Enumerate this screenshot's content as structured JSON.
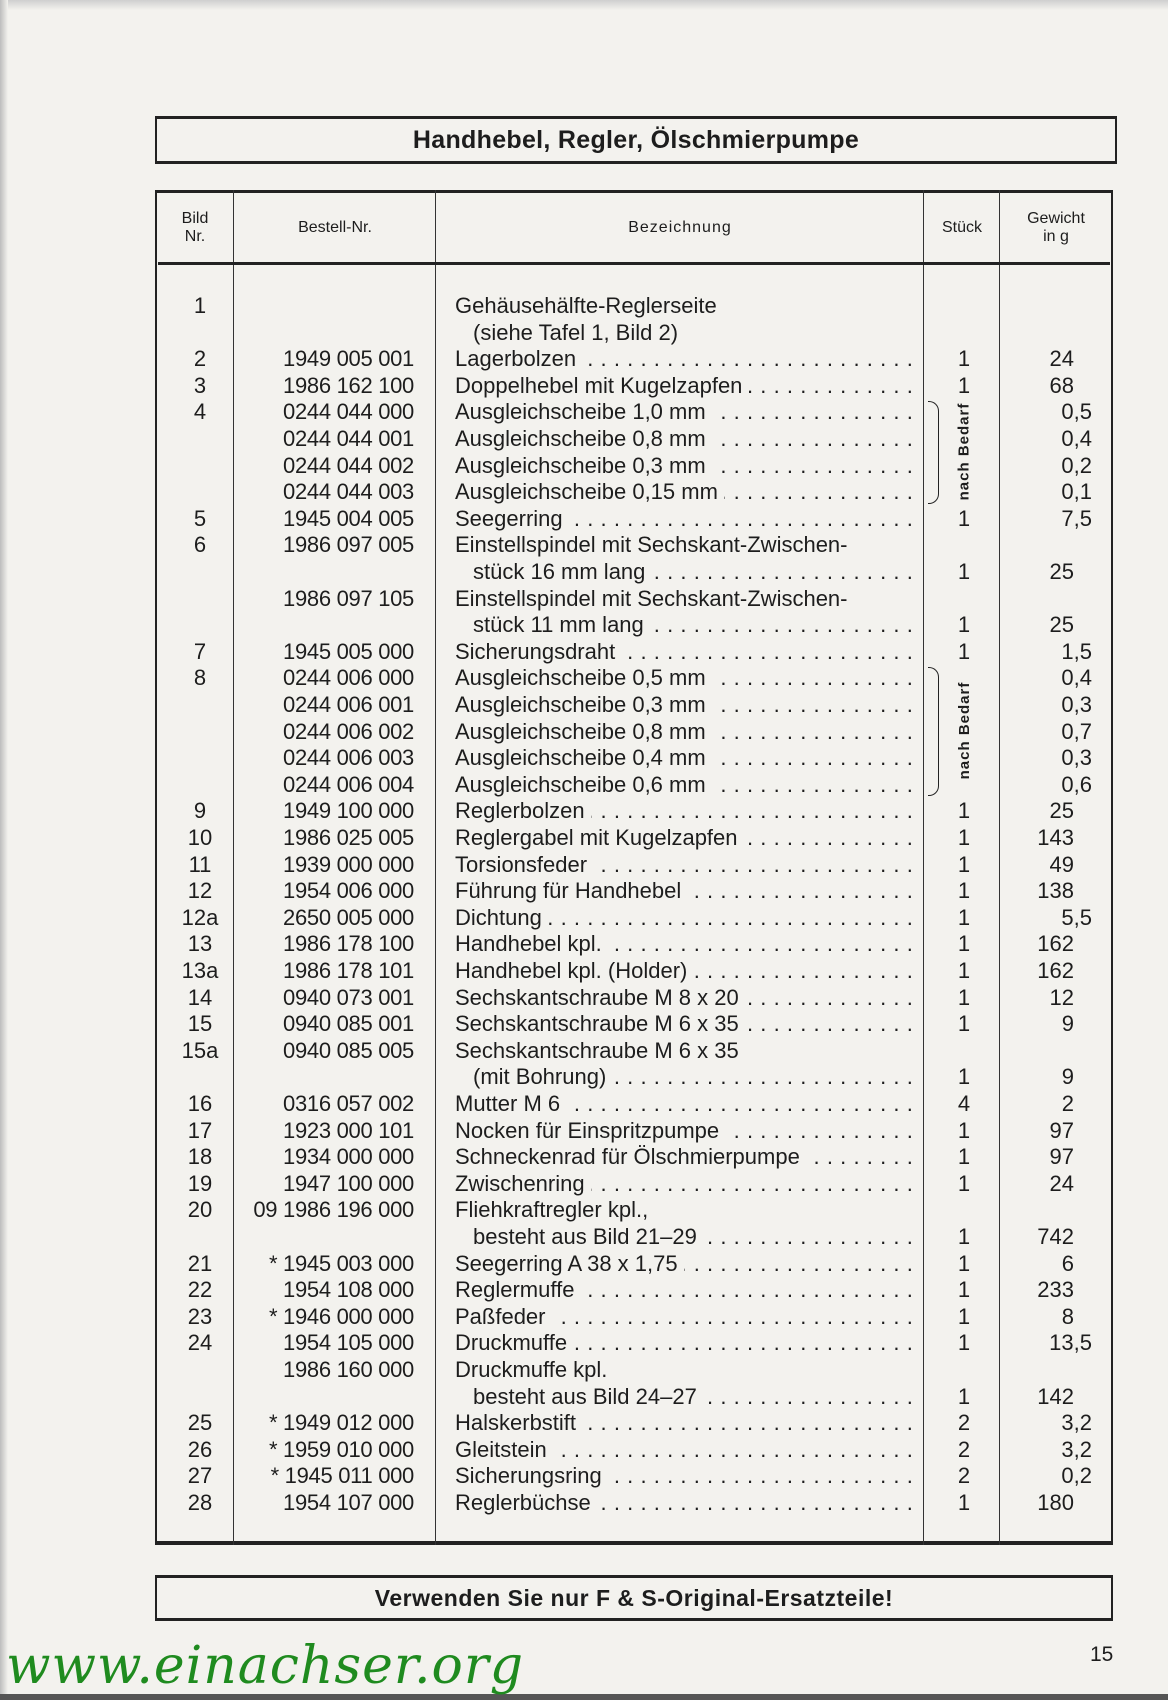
{
  "title": "Handhebel, Regler, Ölschmierpumpe",
  "columns": {
    "bild": "Bild\nNr.",
    "bestell": "Bestell-Nr.",
    "bezeichnung": "Bezeichnung",
    "stueck": "Stück",
    "gewicht": "Gewicht\nin g"
  },
  "group_label": "nach Bedarf",
  "groups": [
    {
      "label": "nach Bedarf",
      "rows": [
        3,
        4,
        5,
        6
      ]
    },
    {
      "label": "nach Bedarf",
      "rows": [
        11,
        12,
        13,
        14,
        15
      ]
    }
  ],
  "rows": [
    {
      "bild": "1",
      "nr": "",
      "lines": [
        "Gehäusehälfte-Reglerseite",
        "(siehe Tafel 1, Bild 2)"
      ],
      "stueck": "",
      "gewicht": ""
    },
    {
      "bild": "2",
      "nr": "1949 005 001",
      "lines": [
        "Lagerbolzen"
      ],
      "stueck": "1",
      "gewicht": "24"
    },
    {
      "bild": "3",
      "nr": "1986 162 100",
      "lines": [
        "Doppelhebel mit Kugelzapfen"
      ],
      "stueck": "1",
      "gewicht": "68"
    },
    {
      "bild": "4",
      "nr": "0244 044 000",
      "lines": [
        "Ausgleichscheibe 1,0 mm"
      ],
      "stueck": "",
      "gewicht": "0,5"
    },
    {
      "bild": "",
      "nr": "0244 044 001",
      "lines": [
        "Ausgleichscheibe 0,8 mm"
      ],
      "stueck": "",
      "gewicht": "0,4"
    },
    {
      "bild": "",
      "nr": "0244 044 002",
      "lines": [
        "Ausgleichscheibe 0,3 mm"
      ],
      "stueck": "",
      "gewicht": "0,2"
    },
    {
      "bild": "",
      "nr": "0244 044 003",
      "lines": [
        "Ausgleichscheibe 0,15 mm"
      ],
      "stueck": "",
      "gewicht": "0,1"
    },
    {
      "bild": "5",
      "nr": "1945 004 005",
      "lines": [
        "Seegerring"
      ],
      "stueck": "1",
      "gewicht": "7,5"
    },
    {
      "bild": "6",
      "nr": "1986 097 005",
      "lines": [
        "Einstellspindel mit Sechskant-Zwischen-",
        "stück 16 mm lang"
      ],
      "stueck": "1",
      "gewicht": "25"
    },
    {
      "bild": "",
      "nr": "1986 097 105",
      "lines": [
        "Einstellspindel mit Sechskant-Zwischen-",
        "stück 11 mm lang"
      ],
      "stueck": "1",
      "gewicht": "25"
    },
    {
      "bild": "7",
      "nr": "1945 005 000",
      "lines": [
        "Sicherungsdraht"
      ],
      "stueck": "1",
      "gewicht": "1,5"
    },
    {
      "bild": "8",
      "nr": "0244 006 000",
      "lines": [
        "Ausgleichscheibe 0,5 mm"
      ],
      "stueck": "",
      "gewicht": "0,4"
    },
    {
      "bild": "",
      "nr": "0244 006 001",
      "lines": [
        "Ausgleichscheibe 0,3 mm"
      ],
      "stueck": "",
      "gewicht": "0,3"
    },
    {
      "bild": "",
      "nr": "0244 006 002",
      "lines": [
        "Ausgleichscheibe 0,8 mm"
      ],
      "stueck": "",
      "gewicht": "0,7"
    },
    {
      "bild": "",
      "nr": "0244 006 003",
      "lines": [
        "Ausgleichscheibe 0,4 mm"
      ],
      "stueck": "",
      "gewicht": "0,3"
    },
    {
      "bild": "",
      "nr": "0244 006 004",
      "lines": [
        "Ausgleichscheibe 0,6 mm"
      ],
      "stueck": "",
      "gewicht": "0,6"
    },
    {
      "bild": "9",
      "nr": "1949 100 000",
      "lines": [
        "Reglerbolzen"
      ],
      "stueck": "1",
      "gewicht": "25"
    },
    {
      "bild": "10",
      "nr": "1986 025 005",
      "lines": [
        "Reglergabel mit Kugelzapfen"
      ],
      "stueck": "1",
      "gewicht": "143"
    },
    {
      "bild": "11",
      "nr": "1939 000 000",
      "lines": [
        "Torsionsfeder"
      ],
      "stueck": "1",
      "gewicht": "49"
    },
    {
      "bild": "12",
      "nr": "1954 006 000",
      "lines": [
        "Führung für Handhebel"
      ],
      "stueck": "1",
      "gewicht": "138"
    },
    {
      "bild": "12a",
      "nr": "2650 005 000",
      "lines": [
        "Dichtung"
      ],
      "stueck": "1",
      "gewicht": "5,5"
    },
    {
      "bild": "13",
      "nr": "1986 178 100",
      "lines": [
        "Handhebel kpl."
      ],
      "stueck": "1",
      "gewicht": "162"
    },
    {
      "bild": "13a",
      "nr": "1986 178 101",
      "lines": [
        "Handhebel kpl. (Holder)"
      ],
      "stueck": "1",
      "gewicht": "162"
    },
    {
      "bild": "14",
      "nr": "0940 073 001",
      "lines": [
        "Sechskantschraube M 8 x 20"
      ],
      "stueck": "1",
      "gewicht": "12"
    },
    {
      "bild": "15",
      "nr": "0940 085 001",
      "lines": [
        "Sechskantschraube M 6 x 35"
      ],
      "stueck": "1",
      "gewicht": "9"
    },
    {
      "bild": "15a",
      "nr": "0940 085 005",
      "lines": [
        "Sechskantschraube M 6 x 35",
        "(mit Bohrung)"
      ],
      "stueck": "1",
      "gewicht": "9"
    },
    {
      "bild": "16",
      "nr": "0316 057 002",
      "lines": [
        "Mutter M 6"
      ],
      "stueck": "4",
      "gewicht": "2"
    },
    {
      "bild": "17",
      "nr": "1923 000 101",
      "lines": [
        "Nocken für Einspritzpumpe"
      ],
      "stueck": "1",
      "gewicht": "97"
    },
    {
      "bild": "18",
      "nr": "1934 000 000",
      "lines": [
        "Schneckenrad für Ölschmierpumpe"
      ],
      "stueck": "1",
      "gewicht": "97"
    },
    {
      "bild": "19",
      "nr": "1947 100 000",
      "lines": [
        "Zwischenring"
      ],
      "stueck": "1",
      "gewicht": "24"
    },
    {
      "bild": "20",
      "nr": "09 1986 196 000",
      "lines": [
        "Fliehkraftregler kpl.,",
        "besteht aus Bild 21–29"
      ],
      "stueck": "1",
      "gewicht": "742"
    },
    {
      "bild": "21",
      "nr": "* 1945 003 000",
      "lines": [
        "Seegerring A 38 x 1,75"
      ],
      "stueck": "1",
      "gewicht": "6"
    },
    {
      "bild": "22",
      "nr": "1954 108 000",
      "lines": [
        "Reglermuffe"
      ],
      "stueck": "1",
      "gewicht": "233"
    },
    {
      "bild": "23",
      "nr": "* 1946 000 000",
      "lines": [
        "Paßfeder"
      ],
      "stueck": "1",
      "gewicht": "8"
    },
    {
      "bild": "24",
      "nr": "1954 105 000",
      "lines": [
        "Druckmuffe"
      ],
      "stueck": "1",
      "gewicht": "13,5"
    },
    {
      "bild": "",
      "nr": "1986 160 000",
      "lines": [
        "Druckmuffe kpl.",
        "besteht aus Bild 24–27"
      ],
      "stueck": "1",
      "gewicht": "142"
    },
    {
      "bild": "25",
      "nr": "* 1949 012 000",
      "lines": [
        "Halskerbstift"
      ],
      "stueck": "2",
      "gewicht": "3,2"
    },
    {
      "bild": "26",
      "nr": "* 1959 010 000",
      "lines": [
        "Gleitstein"
      ],
      "stueck": "2",
      "gewicht": "3,2"
    },
    {
      "bild": "27",
      "nr": "* 1945 011 000",
      "lines": [
        "Sicherungsring"
      ],
      "stueck": "2",
      "gewicht": "0,2"
    },
    {
      "bild": "28",
      "nr": "1954 107 000",
      "lines": [
        "Reglerbüchse"
      ],
      "stueck": "1",
      "gewicht": "180"
    }
  ],
  "footer": "Verwenden Sie nur F & S-Original-Ersatzteile!",
  "page_number": "15",
  "watermark": "www.einachser.org",
  "colors": {
    "paper": "#f3f2ee",
    "ink": "#1d1d1d",
    "watermark": "#1f8b1f"
  }
}
